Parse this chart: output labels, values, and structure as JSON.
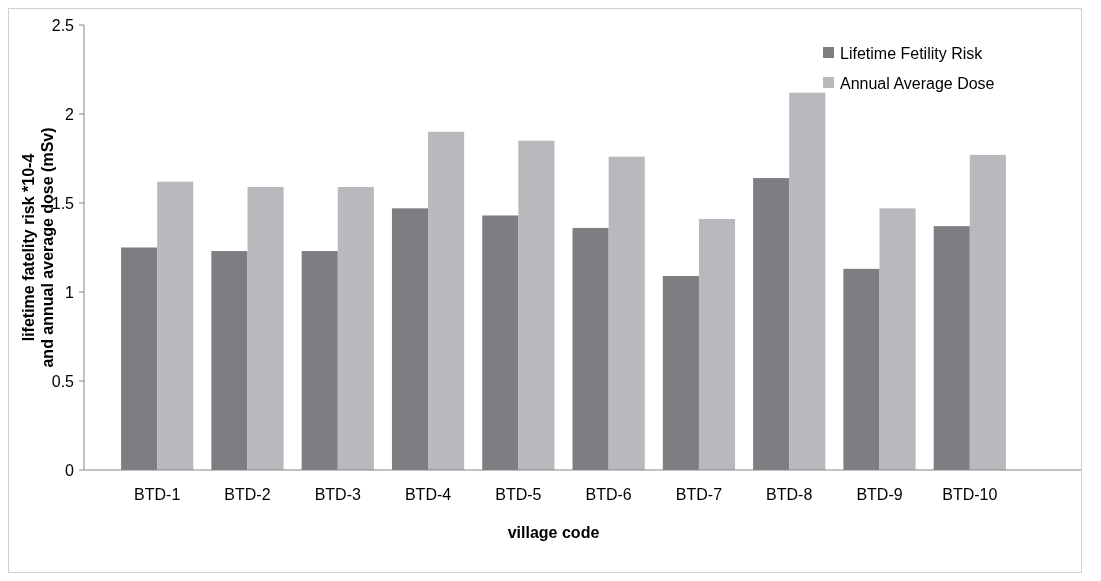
{
  "chart_data": {
    "type": "bar",
    "xlabel": "village code",
    "ylabel": "lifetime fatelity risk *10-4\nand annual average dose (mSv)",
    "categories": [
      "BTD-1",
      "BTD-2",
      "BTD-3",
      "BTD-4",
      "BTD-5",
      "BTD-6",
      "BTD-7",
      "BTD-8",
      "BTD-9",
      "BTD-10"
    ],
    "series": [
      {
        "name": "Lifetime Fetility Risk",
        "color": "#7d7d82",
        "values": [
          1.25,
          1.23,
          1.23,
          1.47,
          1.43,
          1.36,
          1.09,
          1.64,
          1.13,
          1.37
        ]
      },
      {
        "name": "Annual Average Dose",
        "color": "#b9b9bd",
        "values": [
          1.62,
          1.59,
          1.59,
          1.9,
          1.85,
          1.76,
          1.41,
          2.12,
          1.47,
          1.77
        ]
      }
    ],
    "ylim": [
      0,
      2.5
    ],
    "yticks": [
      0,
      0.5,
      1,
      1.5,
      2,
      2.5
    ],
    "legend": "top right"
  }
}
